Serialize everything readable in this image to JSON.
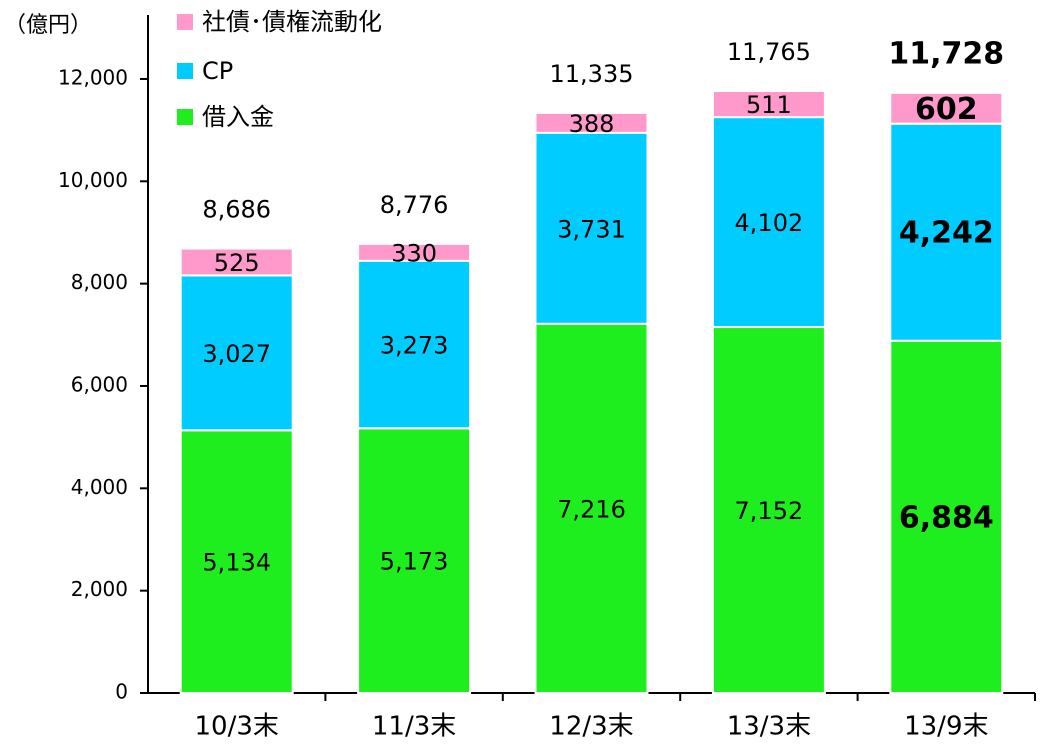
{
  "chart_data": {
    "type": "stacked_bar",
    "y_label": "（億円）",
    "categories": [
      "10/3末",
      "11/3末",
      "12/3末",
      "13/3末",
      "13/9末"
    ],
    "series": [
      {
        "name": "借入金",
        "color": "#1eee1e",
        "values": [
          5134,
          5173,
          7216,
          7152,
          6884
        ],
        "value_labels": [
          "5,134",
          "5,173",
          "7,216",
          "7,152",
          "6,884"
        ]
      },
      {
        "name": "CP",
        "color": "#00ccff",
        "values": [
          3027,
          3273,
          3731,
          4102,
          4242
        ],
        "value_labels": [
          "3,027",
          "3,273",
          "3,731",
          "4,102",
          "4,242"
        ]
      },
      {
        "name": "社債･債権流動化",
        "color": "#ff99cc",
        "values": [
          525,
          330,
          388,
          511,
          602
        ],
        "value_labels": [
          "525",
          "330",
          "388",
          "511",
          "602"
        ]
      }
    ],
    "totals": [
      8686,
      8776,
      11335,
      11765,
      11728
    ],
    "total_labels": [
      "8,686",
      "8,776",
      "11,335",
      "11,765",
      "11,728"
    ],
    "ylim": [
      0,
      13250
    ],
    "yticks": [
      0,
      {
        "value": 2000,
        "label": "2,000"
      },
      {
        "value": 4000,
        "label": "4,000"
      },
      {
        "value": 6000,
        "label": "6,000"
      },
      {
        "value": 8000,
        "label": "8,000"
      },
      {
        "value": 10000,
        "label": "10,000"
      },
      {
        "value": 12000,
        "label": "12,000"
      }
    ]
  }
}
